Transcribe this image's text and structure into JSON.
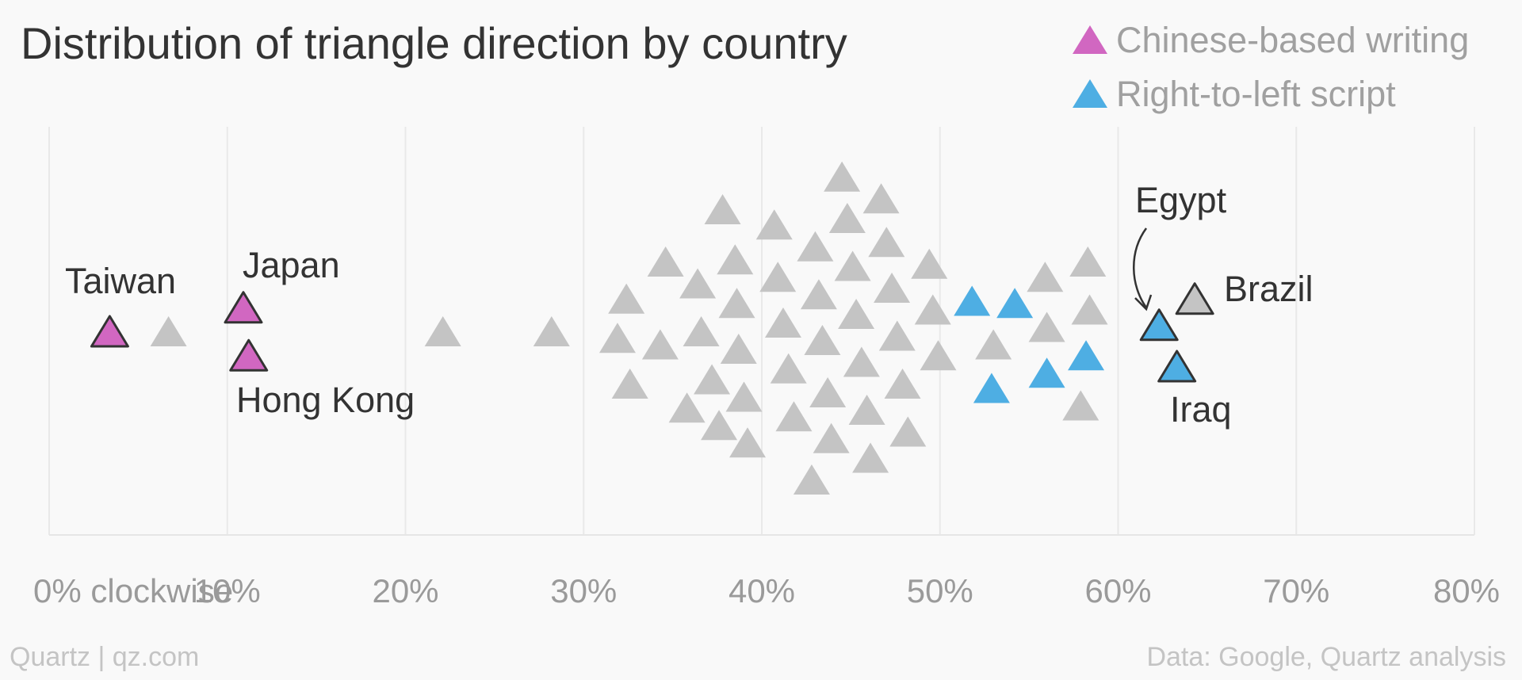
{
  "chart_data": {
    "type": "scatter",
    "title": "Distribution of triangle direction by country",
    "xlabel": "",
    "ylabel": "",
    "xlim": [
      0,
      80
    ],
    "x_ticks": [
      {
        "value": 0,
        "label": "0% clockwise"
      },
      {
        "value": 10,
        "label": "10%"
      },
      {
        "value": 20,
        "label": "20%"
      },
      {
        "value": 30,
        "label": "30%"
      },
      {
        "value": 40,
        "label": "40%"
      },
      {
        "value": 50,
        "label": "50%"
      },
      {
        "value": 60,
        "label": "60%"
      },
      {
        "value": 70,
        "label": "70%"
      },
      {
        "value": 80,
        "label": "80%"
      }
    ],
    "grid": true,
    "legend": {
      "placement": "top-right",
      "items": [
        {
          "label": "Chinese-based writing",
          "color": "#d167c1"
        },
        {
          "label": "Right-to-left script",
          "color": "#4eaee3"
        }
      ]
    },
    "colors": {
      "other": "#c4c4c4",
      "chinese": "#d167c1",
      "rtl": "#4eaee3",
      "outline": "#333333"
    },
    "source_left": "Quartz | qz.com",
    "source_right": "Data: Google, Quartz analysis",
    "points": [
      {
        "x": 3.4,
        "y": 0.0,
        "group": "chinese",
        "label": "Taiwan"
      },
      {
        "x": 10.9,
        "y": 0.55,
        "group": "chinese",
        "label": "Japan"
      },
      {
        "x": 11.2,
        "y": -0.55,
        "group": "chinese",
        "label": "Hong Kong"
      },
      {
        "x": 62.3,
        "y": 0.15,
        "group": "rtl",
        "label": "Egypt"
      },
      {
        "x": 63.3,
        "y": -0.8,
        "group": "rtl",
        "label": "Iraq"
      },
      {
        "x": 64.3,
        "y": 0.75,
        "group": "other",
        "label": "Brazil"
      },
      {
        "x": 51.8,
        "y": 0.7,
        "group": "rtl"
      },
      {
        "x": 54.2,
        "y": 0.65,
        "group": "rtl"
      },
      {
        "x": 58.2,
        "y": -0.55,
        "group": "rtl"
      },
      {
        "x": 56.0,
        "y": -0.95,
        "group": "rtl"
      },
      {
        "x": 52.9,
        "y": -1.3,
        "group": "rtl"
      },
      {
        "x": 6.7,
        "y": 0.0,
        "group": "other"
      },
      {
        "x": 22.1,
        "y": 0.0,
        "group": "other"
      },
      {
        "x": 28.2,
        "y": 0.0,
        "group": "other"
      },
      {
        "x": 31.9,
        "y": -0.15,
        "group": "other"
      },
      {
        "x": 32.4,
        "y": 0.75,
        "group": "other"
      },
      {
        "x": 32.6,
        "y": -1.2,
        "group": "other"
      },
      {
        "x": 34.3,
        "y": -0.3,
        "group": "other"
      },
      {
        "x": 34.6,
        "y": 1.6,
        "group": "other"
      },
      {
        "x": 35.8,
        "y": -1.75,
        "group": "other"
      },
      {
        "x": 36.4,
        "y": 1.1,
        "group": "other"
      },
      {
        "x": 36.6,
        "y": 0.0,
        "group": "other"
      },
      {
        "x": 37.2,
        "y": -1.1,
        "group": "other"
      },
      {
        "x": 37.6,
        "y": -2.15,
        "group": "other"
      },
      {
        "x": 37.8,
        "y": 2.8,
        "group": "other"
      },
      {
        "x": 38.5,
        "y": 1.65,
        "group": "other"
      },
      {
        "x": 38.6,
        "y": 0.65,
        "group": "other"
      },
      {
        "x": 38.7,
        "y": -0.4,
        "group": "other"
      },
      {
        "x": 39.0,
        "y": -1.5,
        "group": "other"
      },
      {
        "x": 39.2,
        "y": -2.55,
        "group": "other"
      },
      {
        "x": 40.7,
        "y": 2.45,
        "group": "other"
      },
      {
        "x": 40.9,
        "y": 1.25,
        "group": "other"
      },
      {
        "x": 41.2,
        "y": 0.2,
        "group": "other"
      },
      {
        "x": 41.5,
        "y": -0.85,
        "group": "other"
      },
      {
        "x": 41.8,
        "y": -1.95,
        "group": "other"
      },
      {
        "x": 42.8,
        "y": -3.4,
        "group": "other"
      },
      {
        "x": 43.0,
        "y": 1.95,
        "group": "other"
      },
      {
        "x": 43.2,
        "y": 0.85,
        "group": "other"
      },
      {
        "x": 43.4,
        "y": -0.2,
        "group": "other"
      },
      {
        "x": 43.7,
        "y": -1.4,
        "group": "other"
      },
      {
        "x": 43.9,
        "y": -2.45,
        "group": "other"
      },
      {
        "x": 44.5,
        "y": 3.55,
        "group": "other"
      },
      {
        "x": 44.8,
        "y": 2.6,
        "group": "other"
      },
      {
        "x": 45.1,
        "y": 1.5,
        "group": "other"
      },
      {
        "x": 45.3,
        "y": 0.4,
        "group": "other"
      },
      {
        "x": 45.6,
        "y": -0.7,
        "group": "other"
      },
      {
        "x": 45.9,
        "y": -1.8,
        "group": "other"
      },
      {
        "x": 46.1,
        "y": -2.9,
        "group": "other"
      },
      {
        "x": 46.7,
        "y": 3.05,
        "group": "other"
      },
      {
        "x": 47.0,
        "y": 2.05,
        "group": "other"
      },
      {
        "x": 47.3,
        "y": 1.0,
        "group": "other"
      },
      {
        "x": 47.6,
        "y": -0.1,
        "group": "other"
      },
      {
        "x": 47.9,
        "y": -1.2,
        "group": "other"
      },
      {
        "x": 48.2,
        "y": -2.3,
        "group": "other"
      },
      {
        "x": 49.4,
        "y": 1.55,
        "group": "other"
      },
      {
        "x": 49.6,
        "y": 0.5,
        "group": "other"
      },
      {
        "x": 49.9,
        "y": -0.55,
        "group": "other"
      },
      {
        "x": 53.0,
        "y": -0.3,
        "group": "other"
      },
      {
        "x": 55.9,
        "y": 1.25,
        "group": "other"
      },
      {
        "x": 56.0,
        "y": 0.1,
        "group": "other"
      },
      {
        "x": 57.9,
        "y": -1.7,
        "group": "other"
      },
      {
        "x": 58.3,
        "y": 1.6,
        "group": "other"
      },
      {
        "x": 58.4,
        "y": 0.5,
        "group": "other"
      }
    ]
  }
}
